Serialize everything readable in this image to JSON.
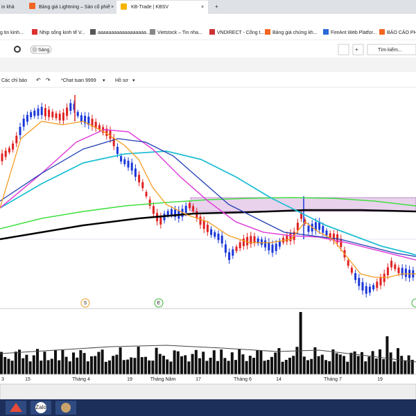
{
  "browser": {
    "tabs": [
      "in khả",
      "Bảng giá Lightning – Sàn cổ phiế",
      "KB-Trade | KBSV"
    ],
    "bookmarks": [
      "g tin kinh...",
      "Nhịp sống kinh tế V...",
      "aaaaaaaaaaaaaaaaaa...",
      "Vietstock – Tin nha...",
      "VNDIRECT - Cổng t...",
      "Bảng giá chứng kh...",
      "FireAnt Web Platfor...",
      "BÁO CÁO PHÂ"
    ]
  },
  "toolbar": {
    "theme": "Sáng",
    "search": "Tìm kiếm..."
  },
  "chart_toolbar": {
    "indicators": "Các chỉ báo",
    "layout": "*Chat tuan 9999",
    "profile": "Hồ sơ"
  },
  "chart": {
    "markers": [
      "S",
      "E"
    ],
    "x_labels": [
      "3",
      "15",
      "Tháng 4",
      "19",
      "Tháng Năm",
      "17",
      "Tháng 6",
      "14",
      "Tháng 7",
      "19"
    ]
  },
  "taskbar": {
    "apps": [
      "Zalo"
    ]
  }
}
